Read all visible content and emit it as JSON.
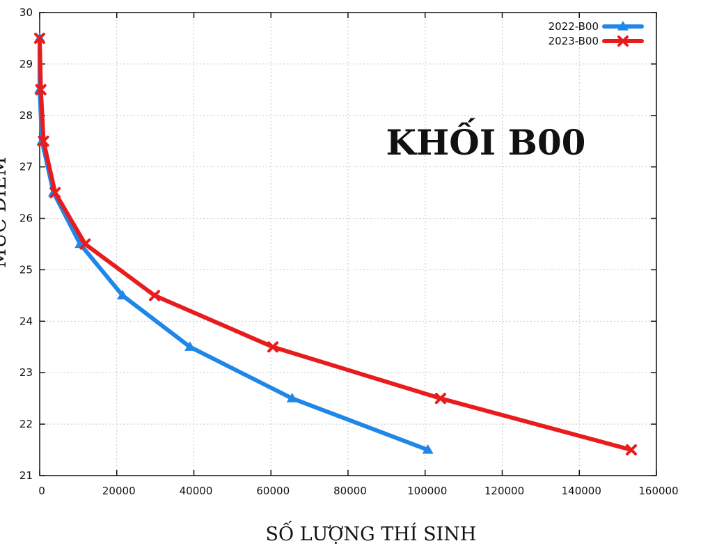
{
  "chart_data": {
    "type": "line",
    "title": "KHỐI B00",
    "xlabel": "SỐ LƯỢNG THÍ SINH",
    "ylabel": "MỨC ĐIỂM",
    "xlim": [
      0,
      160000
    ],
    "ylim": [
      21,
      30
    ],
    "xticks": [
      0,
      20000,
      40000,
      60000,
      80000,
      100000,
      120000,
      140000,
      160000
    ],
    "xtick_labels": [
      "0",
      "20000",
      "40000",
      "60000",
      "80000",
      "100000",
      "120000",
      "140000",
      "160000"
    ],
    "yticks": [
      21,
      22,
      23,
      24,
      25,
      26,
      27,
      28,
      29,
      30
    ],
    "ytick_labels": [
      "21",
      "22",
      "23",
      "24",
      "25",
      "26",
      "27",
      "28",
      "29",
      "30"
    ],
    "grid": true,
    "legend_position": "top-right",
    "series": [
      {
        "name": "2022-B00",
        "color": "#1f87e8",
        "marker": "triangle",
        "points": [
          {
            "x": 0,
            "y": 29.5
          },
          {
            "x": 0,
            "y": 28.5
          },
          {
            "x": 600,
            "y": 27.5
          },
          {
            "x": 3600,
            "y": 26.5
          },
          {
            "x": 10500,
            "y": 25.5
          },
          {
            "x": 21500,
            "y": 24.5
          },
          {
            "x": 39000,
            "y": 23.5
          },
          {
            "x": 65500,
            "y": 22.5
          },
          {
            "x": 100700,
            "y": 21.5
          }
        ]
      },
      {
        "name": "2023-B00",
        "color": "#e81c1c",
        "marker": "x",
        "points": [
          {
            "x": 0,
            "y": 29.5
          },
          {
            "x": 300,
            "y": 28.5
          },
          {
            "x": 1000,
            "y": 27.5
          },
          {
            "x": 4000,
            "y": 26.5
          },
          {
            "x": 11800,
            "y": 25.5
          },
          {
            "x": 29800,
            "y": 24.5
          },
          {
            "x": 60500,
            "y": 23.5
          },
          {
            "x": 104000,
            "y": 22.5
          },
          {
            "x": 153500,
            "y": 21.5
          }
        ]
      }
    ]
  }
}
